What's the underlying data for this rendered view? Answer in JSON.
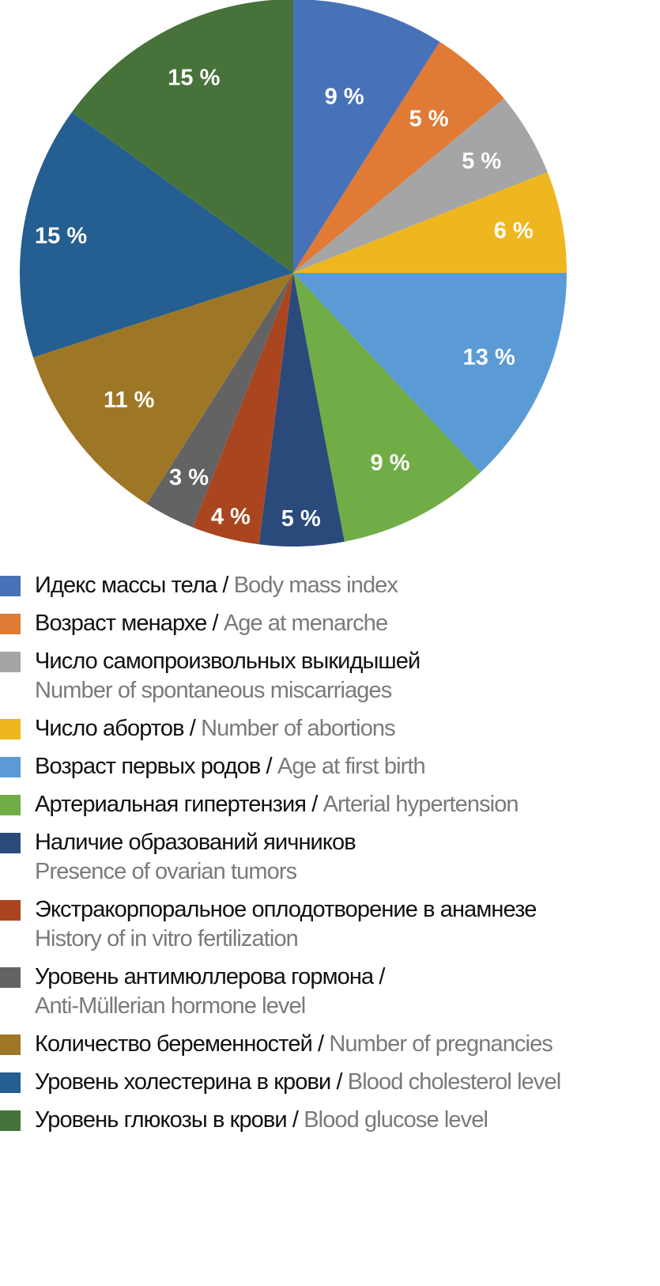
{
  "chart_data": {
    "type": "pie",
    "start_angle_deg": 0,
    "direction": "clockwise",
    "slices": [
      {
        "ru": "Идекс массы тела",
        "en": "Body mass index",
        "value": 9,
        "label": "9 %",
        "color": "#4872b8",
        "wrap": false
      },
      {
        "ru": "Возраст менархе",
        "en": "Age at menarche",
        "value": 5,
        "label": "5 %",
        "color": "#e07a35",
        "wrap": false
      },
      {
        "ru": "Число самопроизвольных выкидышей",
        "en": "Number of spontaneous miscarriages",
        "value": 5,
        "label": "5 %",
        "color": "#a5a5a5",
        "wrap": true
      },
      {
        "ru": "Число абортов",
        "en": "Number of abortions",
        "value": 6,
        "label": "6 %",
        "color": "#efb71f",
        "wrap": false
      },
      {
        "ru": "Возраст первых родов",
        "en": "Age at first birth",
        "value": 13,
        "label": "13 %",
        "color": "#5b9bd5",
        "wrap": false
      },
      {
        "ru": "Артериальная гипертензия",
        "en": "Arterial hypertension",
        "value": 9,
        "label": "9 %",
        "color": "#70ad47",
        "wrap": false
      },
      {
        "ru": "Наличие образований яичников",
        "en": "Presence of ovarian tumors",
        "value": 5,
        "label": "5 %",
        "color": "#2a4a7b",
        "wrap": true
      },
      {
        "ru": "Экстракорпоральное оплодотворение в анамнезе",
        "en": "History of in vitro fertilization",
        "value": 4,
        "label": "4 %",
        "color": "#a9461f",
        "wrap": true
      },
      {
        "ru": "Уровень антимюллерова гормона",
        "en": "Anti-Müllerian hormone level",
        "value": 3,
        "label": "3 %",
        "color": "#636363",
        "wrap": true,
        "sep_on_first": true
      },
      {
        "ru": "Количество беременностей",
        "en": "Number of pregnancies",
        "value": 11,
        "label": "11 %",
        "color": "#9e7726",
        "wrap": false
      },
      {
        "ru": "Уровень холестерина в крови",
        "en": "Blood cholesterol level",
        "value": 15,
        "label": "15 %",
        "color": "#255e91",
        "wrap": false
      },
      {
        "ru": "Уровень глюкозы в крови",
        "en": "Blood glucose level",
        "value": 15,
        "label": "15 %",
        "color": "#47723a",
        "wrap": false
      }
    ],
    "legend_position": "bottom",
    "separator": " / "
  }
}
